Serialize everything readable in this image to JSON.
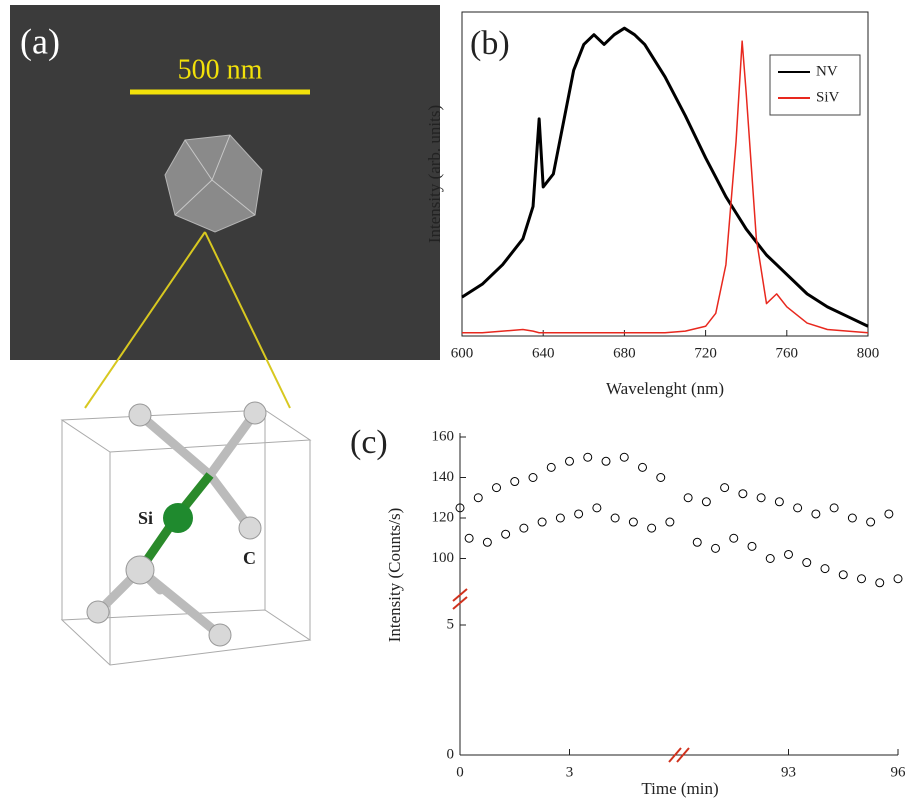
{
  "panel_a": {
    "label": "(a)",
    "scale_bar": "500 nm",
    "atoms": [
      "Si",
      "C"
    ]
  },
  "chart_data": [
    {
      "type": "line",
      "label": "(b)",
      "x_label": "Wavelenght (nm)",
      "y_label": "Intensity (arb. units)",
      "xlim": [
        600,
        800
      ],
      "xticks": [
        600,
        640,
        680,
        720,
        760,
        800
      ],
      "ylim": [
        0,
        1
      ],
      "legend": "upper right",
      "x": [
        600,
        610,
        620,
        630,
        635,
        638,
        640,
        645,
        650,
        655,
        660,
        665,
        670,
        675,
        680,
        685,
        690,
        700,
        710,
        720,
        725,
        730,
        735,
        738,
        740,
        745,
        750,
        755,
        760,
        770,
        780,
        790,
        800
      ],
      "series": [
        {
          "name": "NV",
          "color": "#000000",
          "values": [
            0.12,
            0.16,
            0.22,
            0.3,
            0.4,
            0.67,
            0.46,
            0.5,
            0.66,
            0.82,
            0.9,
            0.93,
            0.9,
            0.93,
            0.95,
            0.93,
            0.9,
            0.8,
            0.68,
            0.55,
            0.49,
            0.43,
            0.38,
            0.35,
            0.33,
            0.29,
            0.25,
            0.22,
            0.19,
            0.13,
            0.09,
            0.06,
            0.03
          ]
        },
        {
          "name": "SiV",
          "color": "#e8281e",
          "values": [
            0.01,
            0.01,
            0.015,
            0.02,
            0.015,
            0.01,
            0.01,
            0.01,
            0.01,
            0.01,
            0.01,
            0.01,
            0.01,
            0.01,
            0.01,
            0.01,
            0.01,
            0.01,
            0.015,
            0.03,
            0.07,
            0.22,
            0.6,
            0.91,
            0.75,
            0.3,
            0.1,
            0.13,
            0.09,
            0.04,
            0.02,
            0.015,
            0.01
          ]
        }
      ]
    },
    {
      "type": "scatter",
      "label": "(c)",
      "x_label": "Time (min)",
      "y_label": "Intensity (Counts/s)",
      "xlim": [
        0,
        96
      ],
      "xbreak": [
        6,
        90
      ],
      "xticks": [
        0,
        3,
        93,
        96
      ],
      "ylim": [
        0,
        160
      ],
      "ybreak": [
        6,
        80
      ],
      "yticks": [
        0,
        5,
        100,
        120,
        140,
        160
      ],
      "color": "#000000",
      "x": [
        0,
        0.25,
        0.5,
        0.75,
        1,
        1.25,
        1.5,
        1.75,
        2,
        2.25,
        2.5,
        2.75,
        3,
        3.25,
        3.5,
        3.75,
        4,
        4.25,
        4.5,
        4.75,
        5,
        5.25,
        5.5,
        5.75,
        90.25,
        90.5,
        90.75,
        91,
        91.25,
        91.5,
        91.75,
        92,
        92.25,
        92.5,
        92.75,
        93,
        93.25,
        93.5,
        93.75,
        94,
        94.25,
        94.5,
        94.75,
        95,
        95.25,
        95.5,
        95.75,
        96
      ],
      "values": [
        125,
        110,
        130,
        108,
        135,
        112,
        138,
        115,
        140,
        118,
        145,
        120,
        148,
        122,
        150,
        125,
        148,
        120,
        150,
        118,
        145,
        115,
        140,
        118,
        130,
        108,
        128,
        105,
        135,
        110,
        132,
        106,
        130,
        100,
        128,
        102,
        125,
        98,
        122,
        95,
        125,
        92,
        120,
        90,
        118,
        88,
        122,
        90
      ]
    }
  ]
}
